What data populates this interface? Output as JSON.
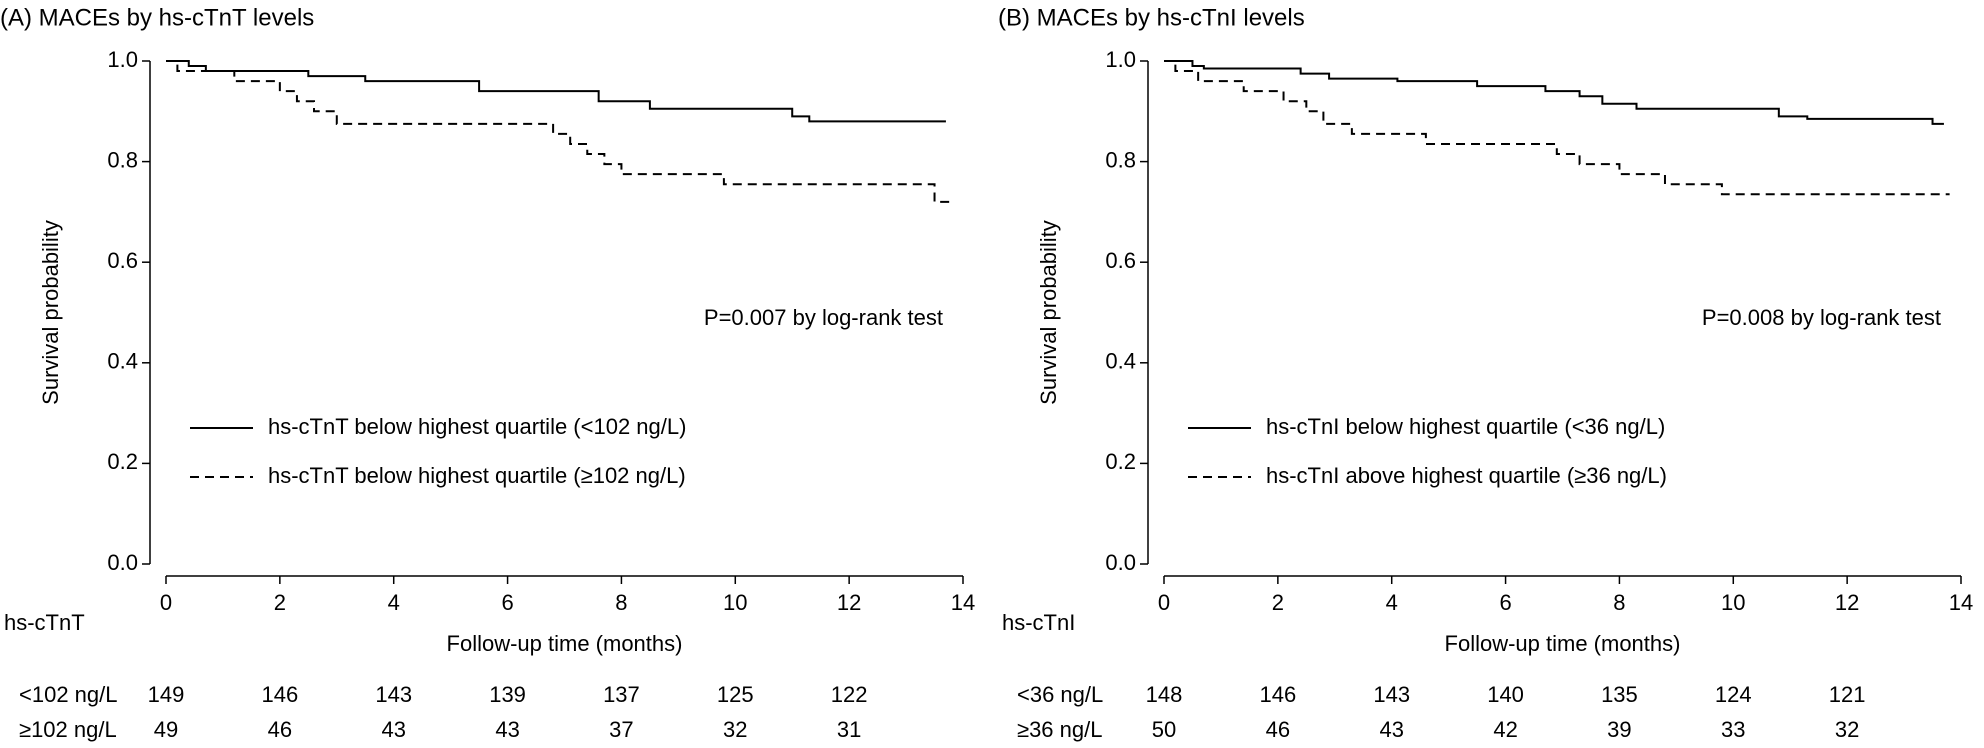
{
  "chart_data": [
    {
      "type": "line",
      "step": true,
      "title": "(A) MACEs by hs-cTnT levels",
      "x_label": "Follow-up time (months)",
      "y_label": "Survival probability",
      "xlim": [
        0,
        14
      ],
      "xticks": [
        0,
        2,
        4,
        6,
        8,
        10,
        12,
        14
      ],
      "ylim": [
        0,
        1
      ],
      "yticks": [
        {
          "value": 0,
          "label": "0.0"
        },
        0.2,
        0.4,
        0.6,
        0.8,
        {
          "value": 1,
          "label": "1.0"
        }
      ],
      "legend": "center left",
      "annotation": "P=0.007 by log-rank test",
      "series": [
        {
          "name": "hs-cTnT below highest quartile (<102 ng/L)",
          "color": "#000000",
          "dash": "solid",
          "x": [
            0,
            0.4,
            0.7,
            2.5,
            3.5,
            5.5,
            7.6,
            8.5,
            11,
            11.3,
            13.7
          ],
          "values": [
            1.0,
            0.99,
            0.98,
            0.97,
            0.96,
            0.94,
            0.92,
            0.905,
            0.89,
            0.88,
            0.88
          ]
        },
        {
          "name": "hs-cTnT below highest quartile (≥102 ng/L)",
          "color": "#000000",
          "dash": "dashed",
          "x": [
            0,
            0.2,
            1.2,
            2,
            2.3,
            2.6,
            3,
            6.8,
            7.1,
            7.4,
            7.7,
            8,
            9.8,
            13.5,
            13.8
          ],
          "values": [
            1.0,
            0.98,
            0.96,
            0.94,
            0.92,
            0.9,
            0.875,
            0.855,
            0.835,
            0.815,
            0.795,
            0.775,
            0.755,
            0.72,
            0.72
          ]
        }
      ],
      "risk_table": {
        "title": "hs-cTnT",
        "rows": [
          {
            "label": "<102 ng/L",
            "values": [
              149,
              146,
              143,
              139,
              137,
              125,
              122
            ]
          },
          {
            "label": "≥102 ng/L",
            "values": [
              49,
              46,
              43,
              43,
              37,
              32,
              31
            ]
          }
        ]
      }
    },
    {
      "type": "line",
      "step": true,
      "title": "(B) MACEs by hs-cTnI levels",
      "x_label": "Follow-up time (months)",
      "y_label": "Survival probability",
      "xlim": [
        0,
        14
      ],
      "xticks": [
        0,
        2,
        4,
        6,
        8,
        10,
        12,
        14
      ],
      "ylim": [
        0,
        1
      ],
      "yticks": [
        {
          "value": 0,
          "label": "0.0"
        },
        0.2,
        0.4,
        0.6,
        0.8,
        {
          "value": 1,
          "label": "1.0"
        }
      ],
      "legend": "center left",
      "annotation": "P=0.008 by log-rank test",
      "series": [
        {
          "name": "hs-cTnI below highest quartile (<36 ng/L)",
          "color": "#000000",
          "dash": "solid",
          "x": [
            0,
            0.5,
            0.7,
            2.4,
            2.9,
            4.1,
            5.5,
            6.7,
            7.3,
            7.7,
            8.3,
            10.8,
            11.3,
            13.5,
            13.7
          ],
          "values": [
            1.0,
            0.99,
            0.985,
            0.975,
            0.965,
            0.96,
            0.95,
            0.94,
            0.93,
            0.915,
            0.905,
            0.89,
            0.885,
            0.875,
            0.875
          ]
        },
        {
          "name": "hs-cTnI above highest quartile (≥36 ng/L)",
          "color": "#000000",
          "dash": "dashed",
          "x": [
            0,
            0.2,
            0.6,
            1.4,
            2.1,
            2.5,
            2.8,
            3.3,
            4.6,
            6.9,
            7.3,
            8,
            8.8,
            9.8,
            13.8
          ],
          "values": [
            1.0,
            0.98,
            0.96,
            0.94,
            0.92,
            0.9,
            0.875,
            0.855,
            0.835,
            0.815,
            0.795,
            0.775,
            0.755,
            0.735,
            0.735
          ]
        }
      ],
      "risk_table": {
        "title": "hs-cTnI",
        "rows": [
          {
            "label": "<36 ng/L",
            "values": [
              148,
              146,
              143,
              140,
              135,
              124,
              121
            ]
          },
          {
            "label": "≥36 ng/L",
            "values": [
              50,
              46,
              43,
              42,
              39,
              33,
              32
            ]
          }
        ]
      }
    }
  ]
}
